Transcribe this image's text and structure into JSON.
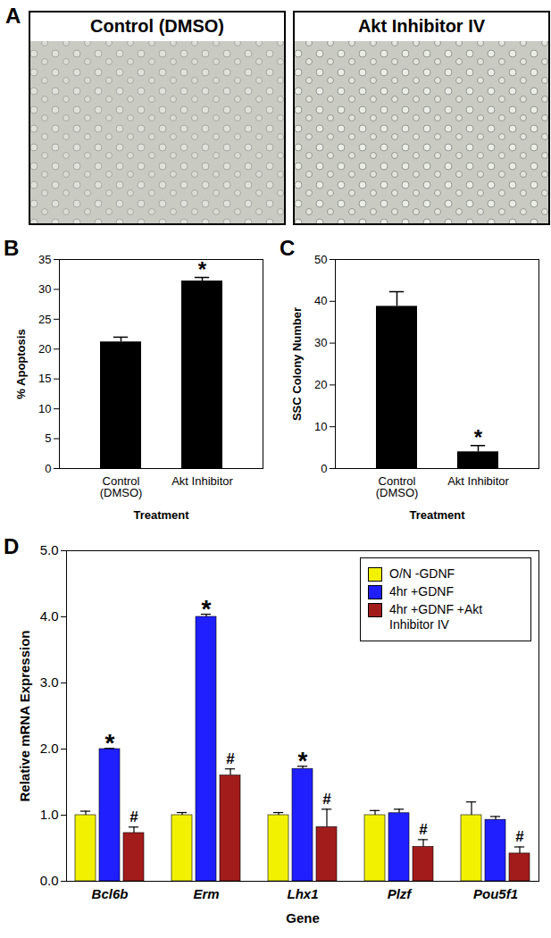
{
  "chart_data": [
    {
      "type": "image",
      "panel": "A",
      "images": [
        {
          "title": "Control (DMSO)"
        },
        {
          "title": "Akt Inhibitor IV"
        }
      ]
    },
    {
      "type": "bar",
      "panel": "B",
      "categories": [
        "Control (DMSO)",
        "Akt Inhibitor"
      ],
      "values": [
        21.2,
        31.4
      ],
      "errors": [
        0.8,
        0.6
      ],
      "color": "#000000",
      "x_label": "Treatment",
      "y_label": "% Apoptosis",
      "ylim": [
        0,
        35
      ],
      "yticks": [
        0,
        5,
        10,
        15,
        20,
        25,
        30,
        35
      ],
      "annotations": [
        {
          "text": "*",
          "category": "Akt Inhibitor"
        }
      ]
    },
    {
      "type": "bar",
      "panel": "C",
      "categories": [
        "Control (DMSO)",
        "Akt Inhibitor"
      ],
      "values": [
        38.8,
        4.0
      ],
      "errors": [
        3.5,
        1.5
      ],
      "color": "#000000",
      "x_label": "Treatment",
      "y_label": "SSC Colony Number",
      "ylim": [
        0,
        50
      ],
      "yticks": [
        0,
        10,
        20,
        30,
        40,
        50
      ],
      "annotations": [
        {
          "text": "*",
          "category": "Akt Inhibitor"
        }
      ]
    },
    {
      "type": "bar",
      "panel": "D",
      "categories": [
        "Bcl6b",
        "Erm",
        "Lhx1",
        "Plzf",
        "Pou5f1"
      ],
      "series": [
        {
          "name": "O/N -GDNF",
          "color": "#f2f200",
          "values": [
            1.0,
            1.0,
            1.0,
            1.0,
            1.0
          ],
          "errors": [
            0.06,
            0.04,
            0.04,
            0.07,
            0.2
          ]
        },
        {
          "name": "4hr +GDNF",
          "color": "#1f1fff",
          "values": [
            2.0,
            4.0,
            1.7,
            1.03,
            0.93
          ],
          "errors": [
            0.01,
            0.04,
            0.04,
            0.06,
            0.05
          ]
        },
        {
          "name": "4hr +GDNF +Akt Inhibitor IV",
          "color": "#a31c1c",
          "values": [
            0.73,
            1.6,
            0.82,
            0.52,
            0.42
          ],
          "errors": [
            0.09,
            0.1,
            0.27,
            0.11,
            0.1
          ]
        }
      ],
      "x_label": "Gene",
      "y_label": "Relative mRNA Expression",
      "ylim": [
        0,
        5
      ],
      "yticks": [
        0,
        1,
        2,
        3,
        4,
        5
      ],
      "legend": "top-right",
      "annotations": [
        {
          "text": "*",
          "category": "Bcl6b",
          "series": "4hr +GDNF"
        },
        {
          "text": "*",
          "category": "Erm",
          "series": "4hr +GDNF"
        },
        {
          "text": "*",
          "category": "Lhx1",
          "series": "4hr +GDNF"
        },
        {
          "text": "#",
          "category": "Bcl6b",
          "series": "4hr +GDNF +Akt Inhibitor IV"
        },
        {
          "text": "#",
          "category": "Erm",
          "series": "4hr +GDNF +Akt Inhibitor IV"
        },
        {
          "text": "#",
          "category": "Lhx1",
          "series": "4hr +GDNF +Akt Inhibitor IV"
        },
        {
          "text": "#",
          "category": "Plzf",
          "series": "4hr +GDNF +Akt Inhibitor IV"
        },
        {
          "text": "#",
          "category": "Pou5f1",
          "series": "4hr +GDNF +Akt Inhibitor IV"
        }
      ]
    }
  ]
}
